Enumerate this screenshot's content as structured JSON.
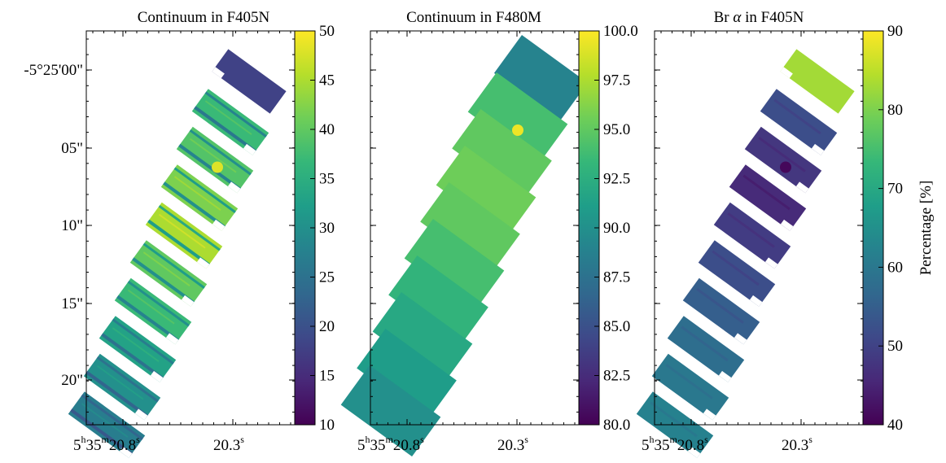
{
  "chart_data": [
    {
      "type": "heatmap",
      "title": "Continuum in F405N",
      "colormap": "viridis",
      "colorbar": {
        "min": 10,
        "max": 50,
        "ticks": [
          "10",
          "15",
          "20",
          "25",
          "30",
          "35",
          "40",
          "45",
          "50"
        ],
        "label": ""
      },
      "ylabel": "",
      "y_ticks": [
        "-5°25'00\"",
        "05\"",
        "10\"",
        "15\"",
        "20\""
      ],
      "x_ticks": [
        {
          "main": "5",
          "h": "h",
          "mid": "35",
          "m": "m",
          "tail": "20.8",
          "s": "s"
        },
        {
          "main": "20.3",
          "s": "s"
        }
      ],
      "tile_values": [
        37,
        39,
        42,
        45,
        40,
        37,
        33,
        30,
        27
      ],
      "stripe_values": [
        28,
        30,
        32,
        34,
        32,
        30,
        27,
        25,
        23
      ],
      "top_tile_value": 18,
      "hotspot_value": 48
    },
    {
      "type": "heatmap",
      "title": "Continuum in F480M",
      "colormap": "viridis",
      "colorbar": {
        "min": 80,
        "max": 100,
        "ticks": [
          "80.0",
          "82.5",
          "85.0",
          "87.5",
          "90.0",
          "92.5",
          "95.0",
          "97.5",
          "100.0"
        ],
        "label": ""
      },
      "x_ticks": [
        {
          "main": "5",
          "h": "h",
          "mid": "35",
          "m": "m",
          "tail": "20.8",
          "s": "s"
        },
        {
          "main": "20.3",
          "s": "s"
        }
      ],
      "tile_values": [
        94,
        95,
        95.5,
        95,
        94,
        93,
        92,
        91,
        90
      ],
      "top_tile_value": 89,
      "hotspot_value": 99.5
    },
    {
      "type": "heatmap",
      "title": "Br α in F405N",
      "title_prefix": "Br ",
      "title_symbol": "α",
      "title_suffix": " in F405N",
      "colormap": "viridis",
      "colorbar": {
        "min": 40,
        "max": 90,
        "ticks": [
          "40",
          "50",
          "60",
          "70",
          "80",
          "90"
        ],
        "label": "Percentage [%]"
      },
      "x_ticks": [
        {
          "main": "5",
          "h": "h",
          "mid": "35",
          "m": "m",
          "tail": "20.8",
          "s": "s"
        },
        {
          "main": "20.3",
          "s": "s"
        }
      ],
      "tile_values": [
        52,
        48,
        46,
        49,
        52,
        55,
        58,
        60,
        62
      ],
      "top_tile_value": 83,
      "hotspot_value": 41
    }
  ],
  "colors": {
    "viridis_stops": [
      "#440154",
      "#482878",
      "#3e4989",
      "#31688e",
      "#26828e",
      "#1f9e89",
      "#35b779",
      "#6ece58",
      "#b5de2b",
      "#fde725"
    ]
  }
}
